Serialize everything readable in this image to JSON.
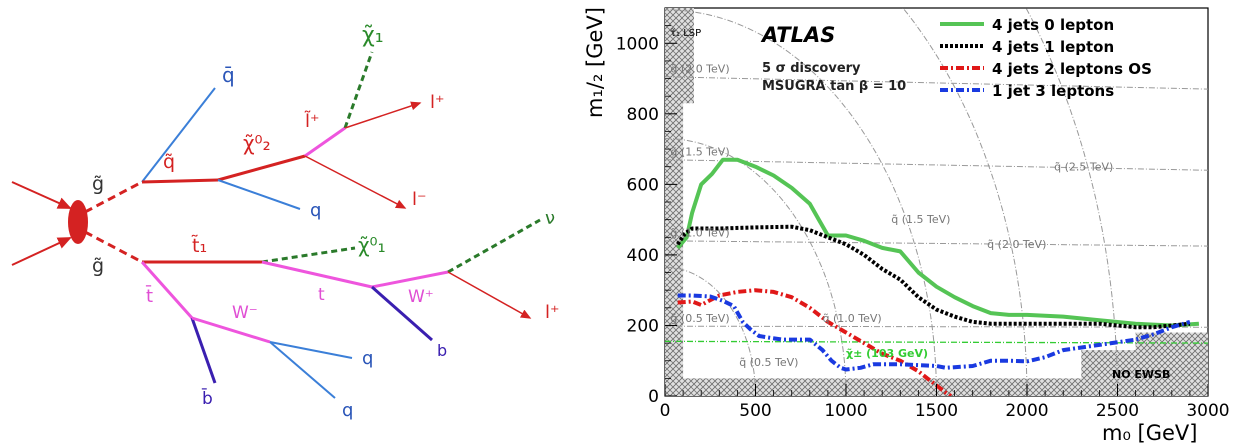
{
  "diagram": {
    "labels": {
      "gluino_top": "g̃",
      "gluino_bottom": "g̃",
      "antiquark": "q̄",
      "squark": "q̃",
      "neutralino2": "χ̃⁰₂",
      "slepton": "l̃⁺",
      "chargino": "χ̃₁",
      "lepton_plus_top": "l⁺",
      "lepton_minus": "l⁻",
      "quark_mid": "q",
      "stop": "t̃₁",
      "neutralino1": "χ̃⁰₁",
      "neutrino": "ν",
      "top": "t",
      "wplus": "W⁺",
      "lepton_plus_right": "l⁺",
      "antitop": "t̄",
      "wminus": "W⁻",
      "bottom": "b",
      "antibottom": "b̄",
      "quark_low1": "q",
      "quark_low2": "q"
    },
    "colors": {
      "red": "#d42222",
      "blue": "#3b7fd8",
      "darkblue": "#3a1fb0",
      "pink": "#ee55dd",
      "green": "#2a7a2a"
    }
  },
  "chart_data": {
    "type": "line",
    "title": "ATLAS",
    "annotation_lines": [
      "5 σ discovery",
      "MSUGRA tan β = 10"
    ],
    "xlabel": "m₀ [GeV]",
    "ylabel": "m₁/₂ [GeV]",
    "xlim": [
      0,
      3000
    ],
    "ylim": [
      0,
      1100
    ],
    "xticks": [
      0,
      500,
      1000,
      1500,
      2000,
      2500,
      3000
    ],
    "yticks": [
      0,
      200,
      400,
      600,
      800,
      1000
    ],
    "grid": false,
    "legend_position": "top-right",
    "series": [
      {
        "name": "4 jets 0 lepton",
        "color": "#55c455",
        "style": "solid",
        "points": [
          [
            70,
            420
          ],
          [
            120,
            450
          ],
          [
            150,
            520
          ],
          [
            200,
            600
          ],
          [
            260,
            630
          ],
          [
            320,
            670
          ],
          [
            400,
            670
          ],
          [
            500,
            650
          ],
          [
            600,
            625
          ],
          [
            700,
            590
          ],
          [
            800,
            545
          ],
          [
            850,
            500
          ],
          [
            900,
            455
          ],
          [
            1000,
            455
          ],
          [
            1100,
            440
          ],
          [
            1200,
            420
          ],
          [
            1300,
            410
          ],
          [
            1400,
            350
          ],
          [
            1500,
            310
          ],
          [
            1600,
            280
          ],
          [
            1700,
            255
          ],
          [
            1800,
            235
          ],
          [
            1900,
            230
          ],
          [
            2000,
            230
          ],
          [
            2200,
            225
          ],
          [
            2400,
            215
          ],
          [
            2600,
            205
          ],
          [
            2800,
            200
          ],
          [
            2950,
            205
          ]
        ]
      },
      {
        "name": "4 jets 1 lepton",
        "color": "#000000",
        "style": "dotted",
        "points": [
          [
            70,
            430
          ],
          [
            110,
            460
          ],
          [
            150,
            475
          ],
          [
            300,
            475
          ],
          [
            500,
            478
          ],
          [
            700,
            480
          ],
          [
            800,
            470
          ],
          [
            900,
            450
          ],
          [
            1000,
            430
          ],
          [
            1100,
            400
          ],
          [
            1200,
            360
          ],
          [
            1300,
            330
          ],
          [
            1400,
            280
          ],
          [
            1500,
            245
          ],
          [
            1600,
            225
          ],
          [
            1700,
            210
          ],
          [
            1800,
            205
          ],
          [
            2000,
            205
          ],
          [
            2400,
            205
          ],
          [
            2600,
            195
          ],
          [
            2700,
            195
          ],
          [
            2800,
            200
          ],
          [
            2900,
            205
          ]
        ]
      },
      {
        "name": "4 jets 2 leptons OS",
        "color": "#e01818",
        "style": "dashdot",
        "points": [
          [
            70,
            265
          ],
          [
            150,
            268
          ],
          [
            200,
            258
          ],
          [
            250,
            272
          ],
          [
            300,
            285
          ],
          [
            400,
            295
          ],
          [
            500,
            300
          ],
          [
            600,
            295
          ],
          [
            700,
            280
          ],
          [
            800,
            250
          ],
          [
            900,
            210
          ],
          [
            1000,
            180
          ],
          [
            1100,
            150
          ],
          [
            1200,
            120
          ],
          [
            1300,
            100
          ],
          [
            1400,
            70
          ],
          [
            1450,
            50
          ],
          [
            1500,
            30
          ],
          [
            1550,
            10
          ],
          [
            1580,
            0
          ]
        ]
      },
      {
        "name": "1 jet 3 leptons",
        "color": "#1a3ae0",
        "style": "dashdot",
        "points": [
          [
            70,
            285
          ],
          [
            150,
            285
          ],
          [
            250,
            282
          ],
          [
            320,
            270
          ],
          [
            380,
            255
          ],
          [
            430,
            210
          ],
          [
            470,
            190
          ],
          [
            520,
            170
          ],
          [
            580,
            165
          ],
          [
            650,
            160
          ],
          [
            700,
            160
          ],
          [
            800,
            160
          ],
          [
            870,
            130
          ],
          [
            920,
            100
          ],
          [
            970,
            80
          ],
          [
            1000,
            75
          ],
          [
            1080,
            80
          ],
          [
            1150,
            90
          ],
          [
            1300,
            90
          ],
          [
            1500,
            85
          ],
          [
            1550,
            80
          ],
          [
            1700,
            85
          ],
          [
            1800,
            100
          ],
          [
            1900,
            100
          ],
          [
            2000,
            98
          ],
          [
            2100,
            110
          ],
          [
            2200,
            130
          ],
          [
            2400,
            145
          ],
          [
            2600,
            160
          ],
          [
            2700,
            175
          ],
          [
            2800,
            195
          ],
          [
            2900,
            210
          ]
        ]
      }
    ],
    "dash_contours": {
      "squark_arcs": [
        {
          "label": "q̃ (0.5 TeV)",
          "r": 500
        },
        {
          "label": "q̃ (1.0 TeV)",
          "r": 1000
        },
        {
          "label": "q̃ (1.5 TeV)",
          "r": 1500
        },
        {
          "label": "q̃ (2.0 TeV)",
          "r": 2000
        },
        {
          "label": "q̃ (2.5 TeV)",
          "r": 2500
        }
      ],
      "gluino_lines": [
        {
          "label": "g̃ (0.5 TeV)",
          "y0": 198,
          "y1": 195
        },
        {
          "label": "g̃ (1.0 TeV)",
          "y0": 440,
          "y1": 425
        },
        {
          "label": "g̃ (1.5 TeV)",
          "y0": 670,
          "y1": 640
        },
        {
          "label": "g̃ (2.0 TeV)",
          "y0": 905,
          "y1": 870
        }
      ],
      "chargino_line": {
        "label": "χ̃± (103 GeV)",
        "y": 155,
        "color": "#33cc33"
      }
    },
    "hatched_region_labels": {
      "lsp": "τ̃₁ LSP",
      "no_ewsb": "NO EWSB"
    }
  }
}
